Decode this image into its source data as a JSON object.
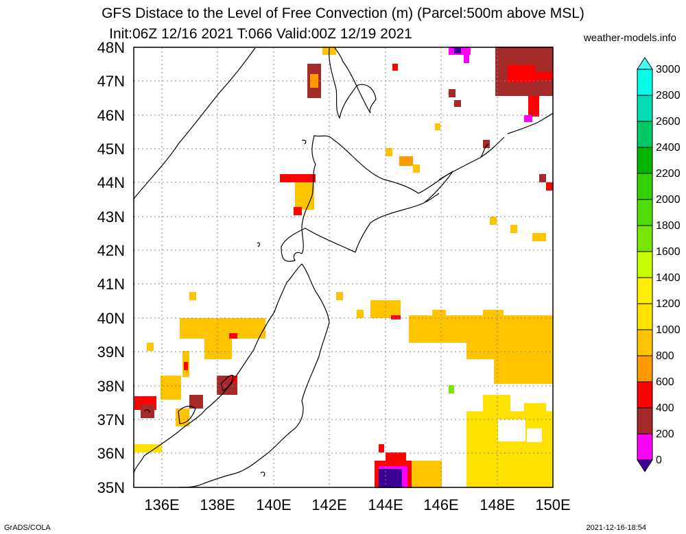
{
  "header": {
    "title_line1": "GFS Distace to the Level of Free Convection (m) (Parcel:500m above MSL)",
    "title_line2": "Init:06Z 12/16 2021 T:066 Valid:00Z 12/19 2021",
    "credit": "weather-models.info"
  },
  "footer": {
    "left": "GrADS/COLA",
    "right": "2021-12-16-18:54"
  },
  "map": {
    "lat_labels": [
      "35N",
      "36N",
      "37N",
      "38N",
      "39N",
      "40N",
      "41N",
      "42N",
      "43N",
      "44N",
      "45N",
      "46N",
      "47N",
      "48N"
    ],
    "lon_labels": [
      "136E",
      "138E",
      "140E",
      "142E",
      "144E",
      "146E",
      "148E",
      "150E"
    ],
    "lat_range": [
      35,
      48
    ],
    "lon_range": [
      135,
      150
    ],
    "coastline_color": "#000000",
    "grid_color": "#888888"
  },
  "colorbar": {
    "labels": [
      "0",
      "200",
      "400",
      "600",
      "800",
      "1000",
      "1200",
      "1400",
      "1600",
      "1800",
      "2000",
      "2200",
      "2400",
      "2600",
      "2800",
      "3000"
    ],
    "colors": [
      "#3c0096",
      "#ff00ff",
      "#a52a2a",
      "#ff0000",
      "#ff9b00",
      "#ffc400",
      "#ffe100",
      "#fff000",
      "#c8ff00",
      "#78e600",
      "#32d200",
      "#00c800",
      "#00b400",
      "#00a040",
      "#00dcb4",
      "#00ffe6",
      "#46ffff"
    ]
  }
}
